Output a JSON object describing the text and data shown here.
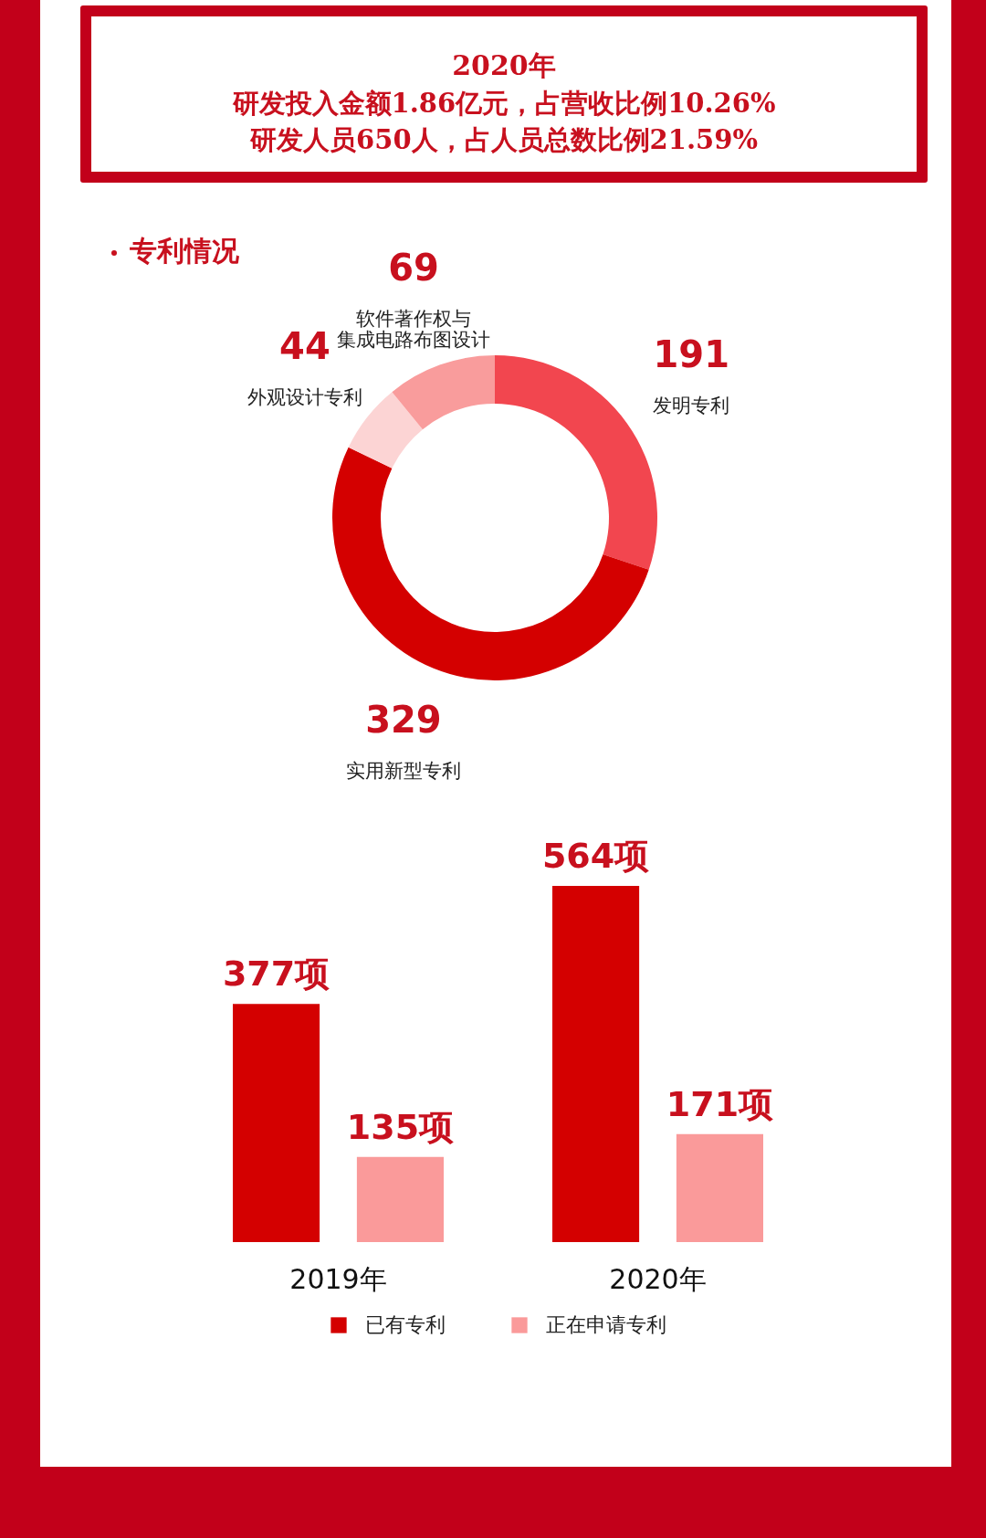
{
  "chart_data": [
    {
      "type": "other",
      "title": "2020年",
      "annotations": [
        "研发投入金额1.86亿元，占营收比例10.26%",
        "研发人员650人，占人员总数比例21.59%"
      ]
    },
    {
      "type": "donut",
      "title": "专利情况",
      "categories": [
        "发明专利",
        "实用新型专利",
        "外观设计专利",
        "软件著作权与集成电路布图设计"
      ],
      "values": [
        191,
        329,
        44,
        69
      ],
      "colors": [
        "#f2464f",
        "#d40000",
        "#fcd4d4",
        "#f99c9c"
      ],
      "data_labels": true
    },
    {
      "type": "bar",
      "categories": [
        "2019年",
        "2020年"
      ],
      "legend": "bottom",
      "series": [
        {
          "name": "已有专利",
          "color": "#d40000",
          "values": [
            377,
            564
          ],
          "value_labels": [
            "377项",
            "564项"
          ]
        },
        {
          "name": "正在申请专利",
          "color": "#fa9a9a",
          "values": [
            135,
            171
          ],
          "value_labels": [
            "135项",
            "171项"
          ]
        }
      ]
    }
  ]
}
